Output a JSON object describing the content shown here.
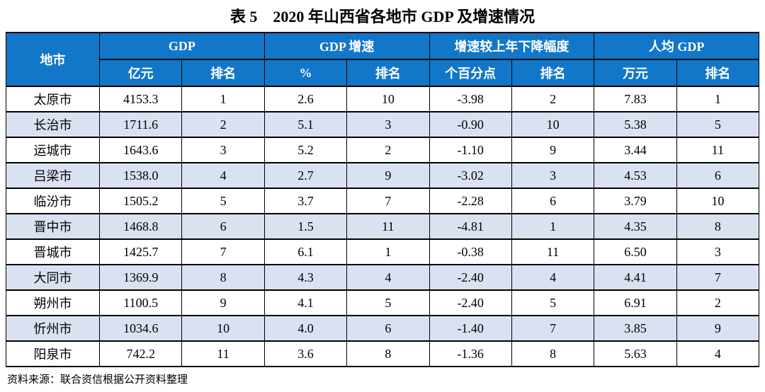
{
  "title": "表 5　2020 年山西省各地市 GDP 及增速情况",
  "colors": {
    "header_bg": "#1277C8",
    "header_text": "#FFFFFF",
    "stripe_bg": "#DAE2F2",
    "border": "#000000"
  },
  "table": {
    "corner_header": "地市",
    "groups": [
      {
        "label": "GDP",
        "sub": [
          "亿元",
          "排名"
        ]
      },
      {
        "label": "GDP 增速",
        "sub": [
          "%",
          "排名"
        ]
      },
      {
        "label": "增速较上年下降幅度",
        "sub": [
          "个百分点",
          "排名"
        ]
      },
      {
        "label": "人均 GDP",
        "sub": [
          "万元",
          "排名"
        ]
      }
    ],
    "rows": [
      {
        "city": "太原市",
        "values": [
          "4153.3",
          "1",
          "2.6",
          "10",
          "-3.98",
          "2",
          "7.83",
          "1"
        ]
      },
      {
        "city": "长治市",
        "values": [
          "1711.6",
          "2",
          "5.1",
          "3",
          "-0.90",
          "10",
          "5.38",
          "5"
        ]
      },
      {
        "city": "运城市",
        "values": [
          "1643.6",
          "3",
          "5.2",
          "2",
          "-1.10",
          "9",
          "3.44",
          "11"
        ]
      },
      {
        "city": "吕梁市",
        "values": [
          "1538.0",
          "4",
          "2.7",
          "9",
          "-3.02",
          "3",
          "4.53",
          "6"
        ]
      },
      {
        "city": "临汾市",
        "values": [
          "1505.2",
          "5",
          "3.7",
          "7",
          "-2.28",
          "6",
          "3.79",
          "10"
        ]
      },
      {
        "city": "晋中市",
        "values": [
          "1468.8",
          "6",
          "1.5",
          "11",
          "-4.81",
          "1",
          "4.35",
          "8"
        ]
      },
      {
        "city": "晋城市",
        "values": [
          "1425.7",
          "7",
          "6.1",
          "1",
          "-0.38",
          "11",
          "6.50",
          "3"
        ]
      },
      {
        "city": "大同市",
        "values": [
          "1369.9",
          "8",
          "4.3",
          "4",
          "-2.40",
          "4",
          "4.41",
          "7"
        ]
      },
      {
        "city": "朔州市",
        "values": [
          "1100.5",
          "9",
          "4.1",
          "5",
          "-2.40",
          "5",
          "6.91",
          "2"
        ]
      },
      {
        "city": "忻州市",
        "values": [
          "1034.6",
          "10",
          "4.0",
          "6",
          "-1.40",
          "7",
          "3.85",
          "9"
        ]
      },
      {
        "city": "阳泉市",
        "values": [
          "742.2",
          "11",
          "3.6",
          "8",
          "-1.36",
          "8",
          "5.63",
          "4"
        ]
      }
    ]
  },
  "footer": {
    "source": "资料来源：联合资信根据公开资料整理"
  }
}
